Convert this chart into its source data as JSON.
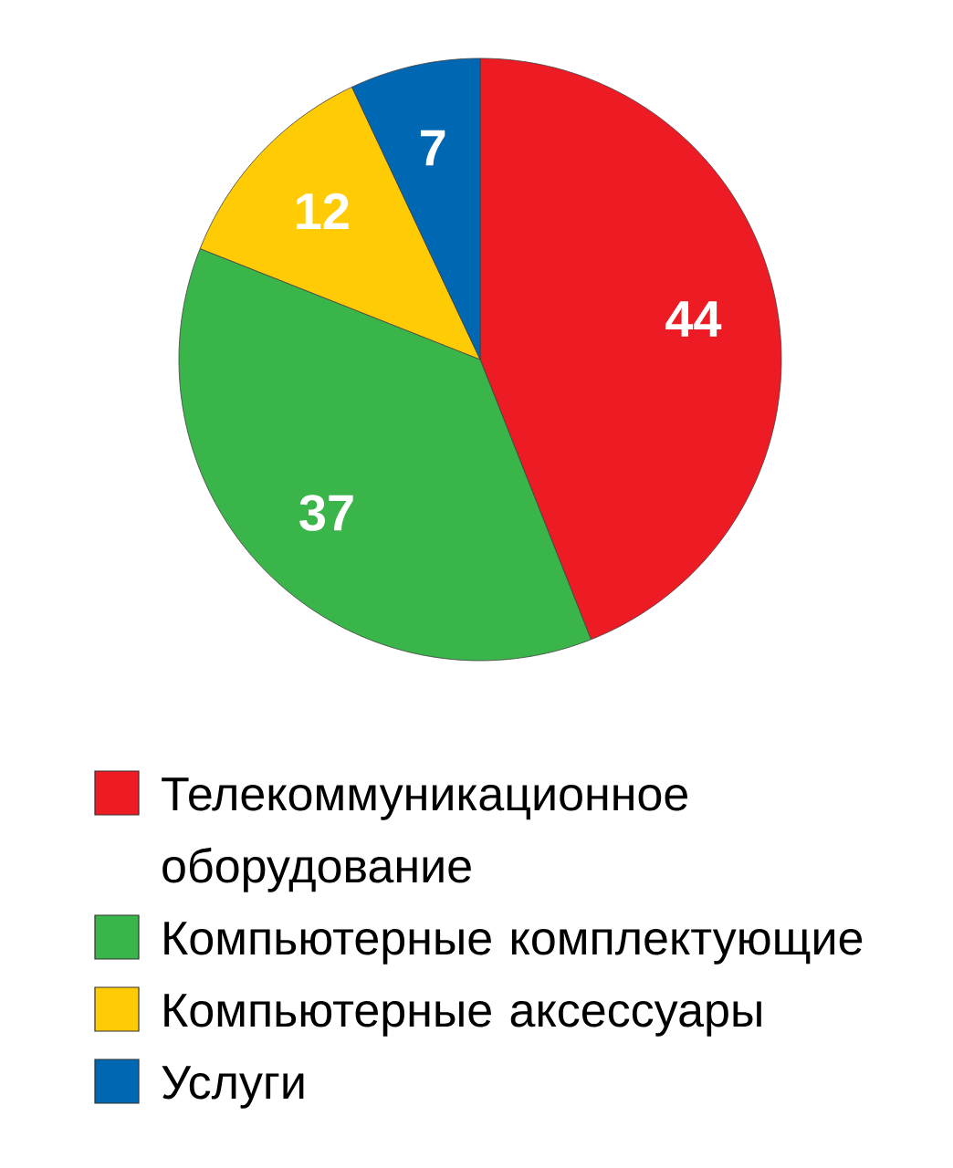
{
  "chart_data": {
    "type": "pie",
    "categories": [
      "Телекоммуникационное оборудование",
      "Компьютерные комплектующие",
      "Компьютерные аксессуары",
      "Услуги"
    ],
    "values": [
      44,
      37,
      12,
      7
    ],
    "colors": [
      "#ed1c24",
      "#3ab54a",
      "#ffcb05",
      "#0068b3"
    ],
    "data_labels": true,
    "legend": "bottom"
  }
}
